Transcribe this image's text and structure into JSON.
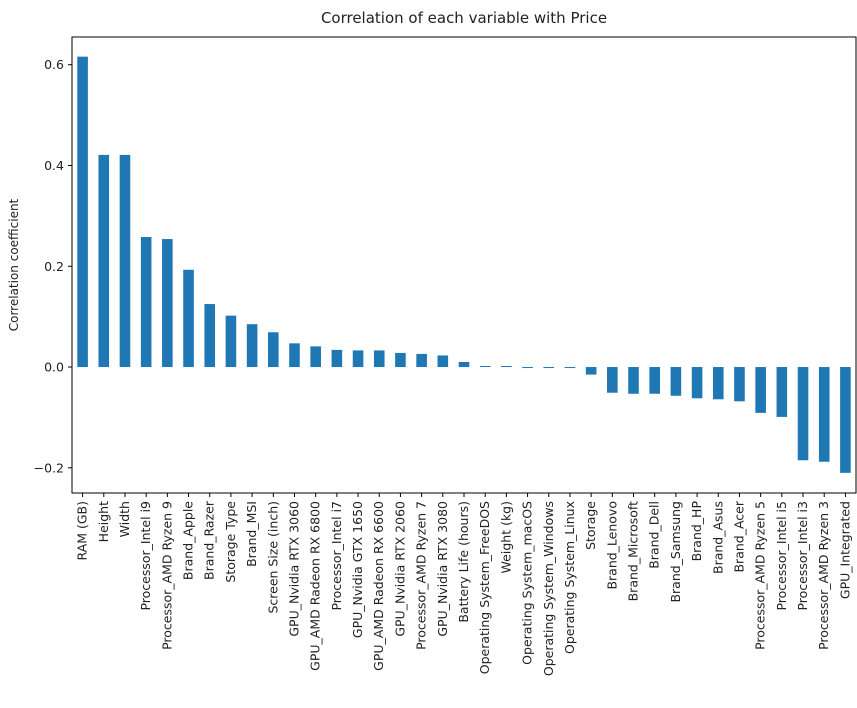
{
  "chart_data": {
    "type": "bar",
    "title": "Correlation of each variable with Price",
    "xlabel": "",
    "ylabel": "Correlation coefficient",
    "ylim": [
      -0.25,
      0.655
    ],
    "yticks": [
      -0.2,
      0.0,
      0.2,
      0.4,
      0.6
    ],
    "ytick_labels": [
      "−0.2",
      "0.0",
      "0.2",
      "0.4",
      "0.6"
    ],
    "grid": false,
    "legend": "none",
    "bar_color": "#1f77b4",
    "categories": [
      "RAM (GB)",
      "Height",
      "Width",
      "Processor_Intel i9",
      "Processor_AMD Ryzen 9",
      "Brand_Apple",
      "Brand_Razer",
      "Storage Type",
      "Brand_MSI",
      "Screen Size (inch)",
      "GPU_Nvidia RTX 3060",
      "GPU_AMD Radeon RX 6800",
      "Processor_Intel i7",
      "GPU_Nvidia GTX 1650",
      "GPU_AMD Radeon RX 6600",
      "GPU_Nvidia RTX 2060",
      "Processor_AMD Ryzen 7",
      "GPU_Nvidia RTX 3080",
      "Battery Life (hours)",
      "Operating System_FreeDOS",
      "Weight (kg)",
      "Operating System_macOS",
      "Operating System_Windows",
      "Operating System_Linux",
      "Storage",
      "Brand_Lenovo",
      "Brand_Microsoft",
      "Brand_Dell",
      "Brand_Samsung",
      "Brand_HP",
      "Brand_Asus",
      "Brand_Acer",
      "Processor_AMD Ryzen 5",
      "Processor_Intel i5",
      "Processor_Intel i3",
      "Processor_AMD Ryzen 3",
      "GPU_Integrated"
    ],
    "values": [
      0.616,
      0.421,
      0.421,
      0.258,
      0.254,
      0.193,
      0.125,
      0.102,
      0.085,
      0.069,
      0.047,
      0.041,
      0.034,
      0.033,
      0.033,
      0.028,
      0.026,
      0.023,
      0.01,
      0.002,
      0.002,
      -0.002,
      -0.002,
      -0.002,
      -0.015,
      -0.051,
      -0.053,
      -0.053,
      -0.057,
      -0.062,
      -0.064,
      -0.068,
      -0.091,
      -0.099,
      -0.185,
      -0.188,
      -0.21
    ]
  }
}
